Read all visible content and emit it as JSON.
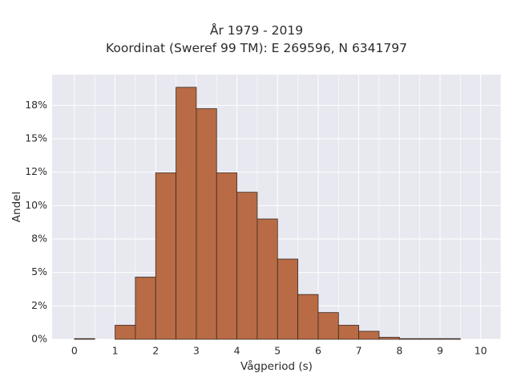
{
  "chart_data": {
    "type": "bar",
    "title": "År 1979 - 2019",
    "subtitle": "Koordinat (Sweref 99 TM): E 269596, N 6341797",
    "xlabel": "Vågperiod (s)",
    "ylabel": "Andel",
    "bin_width": 0.5,
    "bin_starts": [
      0,
      0.5,
      1,
      1.5,
      2,
      2.5,
      3,
      3.5,
      4,
      4.5,
      5,
      5.5,
      6,
      6.5,
      7,
      7.5,
      8,
      8.5,
      9,
      9.5
    ],
    "values": [
      0.0005,
      0,
      0.0105,
      0.0465,
      0.1245,
      0.1885,
      0.1725,
      0.1245,
      0.11,
      0.09,
      0.06,
      0.0335,
      0.02,
      0.0105,
      0.006,
      0.0015,
      0.0005,
      0.0005,
      0.0005,
      0
    ],
    "xticks": [
      0,
      1,
      2,
      3,
      4,
      5,
      6,
      7,
      8,
      9,
      10
    ],
    "xtick_labels": [
      "0",
      "1",
      "2",
      "3",
      "4",
      "5",
      "6",
      "7",
      "8",
      "9",
      "10"
    ],
    "yticks": [
      0,
      0.025,
      0.05,
      0.075,
      0.1,
      0.125,
      0.15,
      0.175
    ],
    "ytick_labels": [
      "0%",
      "2%",
      "5%",
      "8%",
      "10%",
      "12%",
      "15%",
      "18%"
    ],
    "xlim": [
      -0.55,
      10.5
    ],
    "ylim": [
      0,
      0.198
    ],
    "grid": true,
    "colors": {
      "bar_fill": "#b86b45",
      "bar_edge": "#3a2a20",
      "plot_bg": "#e8e8f0",
      "grid": "#ffffff"
    }
  }
}
